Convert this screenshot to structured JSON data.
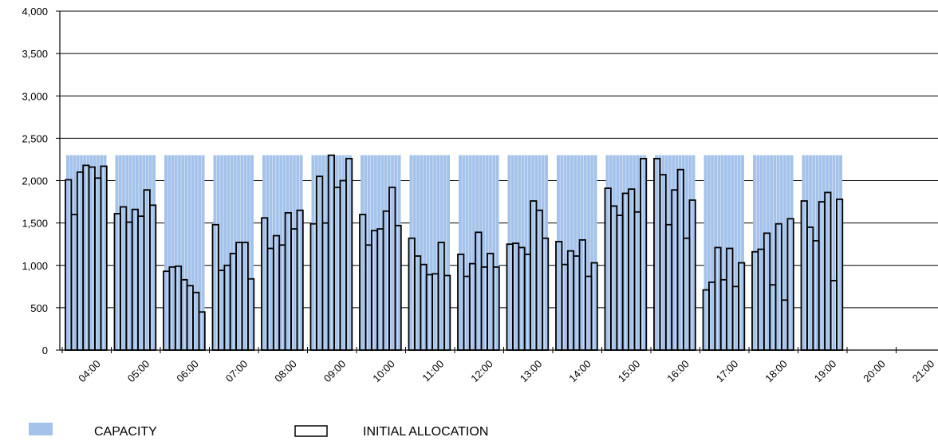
{
  "chart_data": {
    "type": "bar",
    "title": "",
    "xlabel": "",
    "ylabel": "",
    "ylim": [
      0,
      4000
    ],
    "y_ticks": [
      0,
      500,
      1000,
      1500,
      2000,
      2500,
      3000,
      3500,
      4000
    ],
    "y_tick_labels": [
      "0",
      "500",
      "1,000",
      "1,500",
      "2,000",
      "2,500",
      "3,000",
      "3,500",
      "4,000"
    ],
    "x_tick_labels": [
      "04:00",
      "05:00",
      "06:00",
      "07:00",
      "08:00",
      "09:00",
      "10:00",
      "11:00",
      "12:00",
      "13:00",
      "14:00",
      "15:00",
      "16:00",
      "17:00",
      "18:00",
      "19:00",
      "20:00",
      "21:00"
    ],
    "slots_per_hour": 12,
    "grid": true,
    "legend_position": "bottom-left",
    "colors": {
      "capacity": "#a4c2ea",
      "allocation_edge": "#000000",
      "grid": "#000000"
    },
    "series": [
      {
        "name": "CAPACITY",
        "style": "filled",
        "periods": [
          {
            "hour": "04:00",
            "value": 2300
          },
          {
            "hour": "05:00",
            "value": 2300
          },
          {
            "hour": "06:00",
            "value": 2300
          },
          {
            "hour": "07:00",
            "value": 2300
          },
          {
            "hour": "08:00",
            "value": 2300
          },
          {
            "hour": "09:00",
            "value": 2300
          },
          {
            "hour": "10:00",
            "value": 2300
          },
          {
            "hour": "11:00",
            "value": 2300
          },
          {
            "hour": "12:00",
            "value": 2300
          },
          {
            "hour": "13:00",
            "value": 2300
          },
          {
            "hour": "14:00",
            "value": 2300
          },
          {
            "hour": "15:00",
            "value": 2300
          },
          {
            "hour": "16:00",
            "value": 2300
          },
          {
            "hour": "17:00",
            "value": 2300
          },
          {
            "hour": "18:00",
            "value": 2300
          },
          {
            "hour": "19:00",
            "value": 2300
          }
        ]
      },
      {
        "name": "INITIAL ALLOCATION",
        "style": "outline",
        "groups": [
          {
            "hour": "04:00",
            "values": [
              2010,
              1600,
              2100,
              2180,
              2160,
              2030,
              2170
            ]
          },
          {
            "hour": "05:00",
            "values": [
              1610,
              1690,
              1510,
              1660,
              1580,
              1890,
              1710
            ]
          },
          {
            "hour": "06:00",
            "values": [
              930,
              980,
              990,
              830,
              760,
              680,
              450
            ]
          },
          {
            "hour": "07:00",
            "values": [
              1480,
              940,
              1000,
              1140,
              1270,
              1270,
              840
            ]
          },
          {
            "hour": "08:00",
            "values": [
              1560,
              1200,
              1350,
              1240,
              1620,
              1430,
              1650
            ]
          },
          {
            "hour": "09:00",
            "values": [
              1490,
              2050,
              1500,
              2300,
              1920,
              2000,
              2260
            ]
          },
          {
            "hour": "10:00",
            "values": [
              1600,
              1240,
              1410,
              1430,
              1640,
              1920,
              1470
            ]
          },
          {
            "hour": "11:00",
            "values": [
              1320,
              1110,
              1010,
              890,
              900,
              1270,
              880
            ]
          },
          {
            "hour": "12:00",
            "values": [
              1130,
              870,
              1020,
              1390,
              980,
              1140,
              980
            ]
          },
          {
            "hour": "13:00",
            "values": [
              1250,
              1260,
              1210,
              1130,
              1760,
              1650,
              1320
            ]
          },
          {
            "hour": "14:00",
            "values": [
              1280,
              1010,
              1170,
              1110,
              1300,
              870,
              1030
            ]
          },
          {
            "hour": "15:00",
            "values": [
              1910,
              1700,
              1590,
              1850,
              1900,
              1630,
              2260
            ]
          },
          {
            "hour": "16:00",
            "values": [
              2260,
              2070,
              1480,
              1890,
              2130,
              1320,
              1770
            ]
          },
          {
            "hour": "17:00",
            "values": [
              710,
              800,
              1210,
              830,
              1200,
              750,
              1030
            ]
          },
          {
            "hour": "18:00",
            "values": [
              1160,
              1190,
              1380,
              770,
              1490,
              590,
              1550
            ]
          },
          {
            "hour": "19:00",
            "values": [
              1760,
              1450,
              1290,
              1750,
              1860,
              820,
              1780
            ]
          }
        ]
      }
    ],
    "legend": [
      {
        "name": "CAPACITY"
      },
      {
        "name": "INITIAL ALLOCATION"
      }
    ]
  }
}
